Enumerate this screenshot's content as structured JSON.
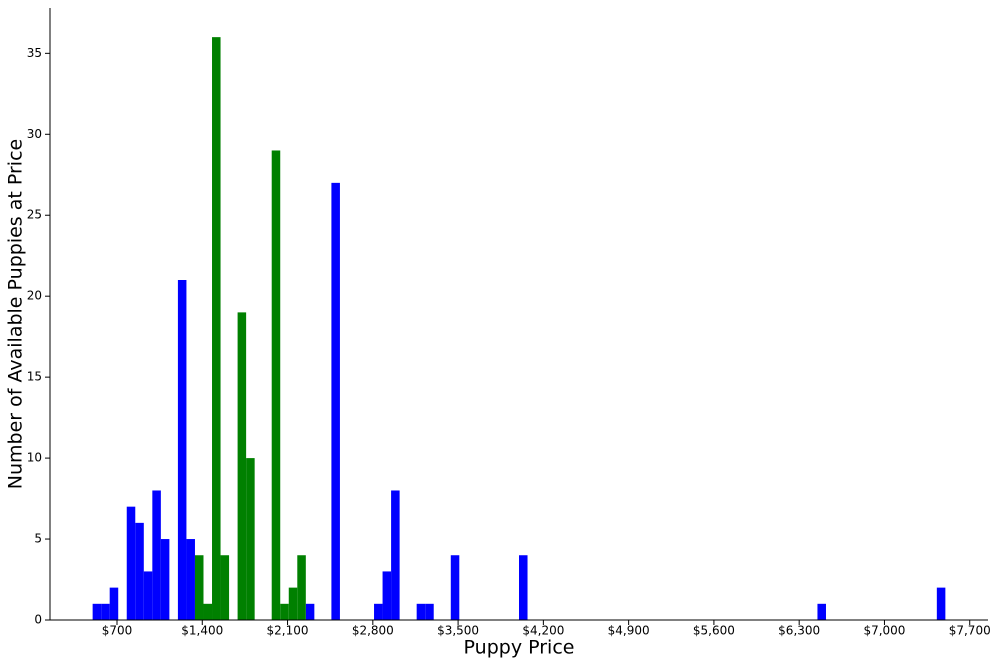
{
  "chart_data": {
    "type": "histogram",
    "x_label": "Puppy Price",
    "y_label": "Number of Available Puppies at Price",
    "bins": [
      500,
      570,
      640,
      710,
      780,
      850,
      920,
      990,
      1060,
      1130,
      1200,
      1270,
      1340,
      1410,
      1480,
      1550,
      1620,
      1690,
      1760,
      1830,
      1900,
      1970,
      2040,
      2110,
      2180,
      2250,
      2320,
      2390,
      2460,
      2530,
      2600,
      2670,
      2740,
      2810,
      2880,
      2950,
      3020,
      3090,
      3160,
      3230,
      3300,
      3370,
      3440,
      3510,
      3580,
      3650,
      3720,
      3790,
      3860,
      3930,
      4000,
      4070,
      4140,
      4210,
      4280,
      4350,
      4420,
      4490,
      4560,
      4630,
      4700,
      4770,
      4840,
      4910,
      4980,
      5050,
      5120,
      5190,
      5260,
      5330,
      5400,
      5470,
      5540,
      5610,
      5680,
      5750,
      5820,
      5890,
      5960,
      6030,
      6100,
      6170,
      6240,
      6310,
      6380,
      6450,
      6520,
      6590,
      6660,
      6730,
      6800,
      6870,
      6940,
      7010,
      7080,
      7150,
      7220,
      7290,
      7360,
      7430,
      7500
    ],
    "series": [
      {
        "color": "#0000ff",
        "values": [
          1,
          1,
          2,
          0,
          7,
          6,
          3,
          8,
          5,
          0,
          21,
          5,
          0,
          0,
          0,
          0,
          0,
          0,
          0,
          0,
          0,
          0,
          0,
          0,
          0,
          1,
          0,
          0,
          27,
          0,
          0,
          0,
          0,
          1,
          3,
          8,
          0,
          0,
          1,
          1,
          0,
          0,
          4,
          0,
          0,
          0,
          0,
          0,
          0,
          0,
          4,
          0,
          0,
          0,
          0,
          0,
          0,
          0,
          0,
          0,
          0,
          0,
          0,
          0,
          0,
          0,
          0,
          0,
          0,
          0,
          0,
          0,
          0,
          0,
          0,
          0,
          0,
          0,
          0,
          0,
          0,
          0,
          0,
          0,
          0,
          1,
          0,
          0,
          0,
          0,
          0,
          0,
          0,
          0,
          0,
          0,
          0,
          0,
          0,
          2
        ]
      },
      {
        "color": "#008000",
        "values": [
          0,
          0,
          0,
          0,
          0,
          0,
          0,
          0,
          0,
          0,
          0,
          0,
          4,
          1,
          36,
          4,
          0,
          19,
          10,
          0,
          0,
          29,
          1,
          2,
          4,
          0,
          0,
          0,
          0,
          0,
          0,
          0,
          0,
          0,
          0,
          0,
          0,
          0,
          0,
          0,
          0,
          0,
          0,
          0,
          0,
          0,
          0,
          0,
          0,
          0,
          0,
          0,
          0,
          0,
          0,
          0,
          0,
          0,
          0,
          0,
          0,
          0,
          0,
          0,
          0,
          0,
          0,
          0,
          0,
          0,
          0,
          0,
          0,
          0,
          0,
          0,
          0,
          0,
          0,
          0,
          0,
          0,
          0,
          0,
          0,
          0,
          0,
          0,
          0,
          0,
          0,
          0,
          0,
          0,
          0,
          0,
          0,
          0,
          0,
          0
        ]
      }
    ],
    "xlim": [
      150,
      7850
    ],
    "ylim": [
      0,
      37.8
    ],
    "xticks": [
      {
        "value": 700,
        "label": "$700"
      },
      {
        "value": 1400,
        "label": "$1,400"
      },
      {
        "value": 2100,
        "label": "$2,100"
      },
      {
        "value": 2800,
        "label": "$2,800"
      },
      {
        "value": 3500,
        "label": "$3,500"
      },
      {
        "value": 4200,
        "label": "$4,200"
      },
      {
        "value": 4900,
        "label": "$4,900"
      },
      {
        "value": 5600,
        "label": "$5,600"
      },
      {
        "value": 6300,
        "label": "$6,300"
      },
      {
        "value": 7000,
        "label": "$7,000"
      },
      {
        "value": 7700,
        "label": "$7,700"
      }
    ],
    "yticks": [
      0,
      5,
      10,
      15,
      20,
      25,
      30,
      35
    ]
  }
}
